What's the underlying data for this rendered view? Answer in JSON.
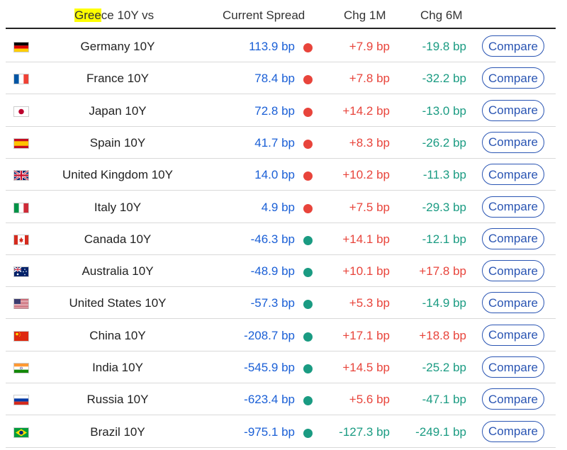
{
  "header": {
    "title_highlight": "Gree",
    "title_rest": "ce 10Y vs",
    "spread": "Current Spread",
    "chg1m": "Chg 1M",
    "chg6m": "Chg 6M"
  },
  "colors": {
    "up": "#e8443b",
    "down": "#1a9b82",
    "spread": "#1a5fd6",
    "button": "#2a55b3"
  },
  "rows": [
    {
      "flag": "germany-flag-icon",
      "name": "Germany 10Y",
      "spread": "113.9 bp",
      "status": "red",
      "m1": "+7.9 bp",
      "m6": "-19.8 bp",
      "button": "Compare"
    },
    {
      "flag": "france-flag-icon",
      "name": "France 10Y",
      "spread": "78.4 bp",
      "status": "red",
      "m1": "+7.8 bp",
      "m6": "-32.2 bp",
      "button": "Compare"
    },
    {
      "flag": "japan-flag-icon",
      "name": "Japan 10Y",
      "spread": "72.8 bp",
      "status": "red",
      "m1": "+14.2 bp",
      "m6": "-13.0 bp",
      "button": "Compare"
    },
    {
      "flag": "spain-flag-icon",
      "name": "Spain 10Y",
      "spread": "41.7 bp",
      "status": "red",
      "m1": "+8.3 bp",
      "m6": "-26.2 bp",
      "button": "Compare"
    },
    {
      "flag": "uk-flag-icon",
      "name": "United Kingdom 10Y",
      "spread": "14.0 bp",
      "status": "red",
      "m1": "+10.2 bp",
      "m6": "-11.3 bp",
      "button": "Compare"
    },
    {
      "flag": "italy-flag-icon",
      "name": "Italy 10Y",
      "spread": "4.9 bp",
      "status": "red",
      "m1": "+7.5 bp",
      "m6": "-29.3 bp",
      "button": "Compare"
    },
    {
      "flag": "canada-flag-icon",
      "name": "Canada 10Y",
      "spread": "-46.3 bp",
      "status": "green",
      "m1": "+14.1 bp",
      "m6": "-12.1 bp",
      "button": "Compare"
    },
    {
      "flag": "australia-flag-icon",
      "name": "Australia 10Y",
      "spread": "-48.9 bp",
      "status": "green",
      "m1": "+10.1 bp",
      "m6": "+17.8 bp",
      "button": "Compare"
    },
    {
      "flag": "usa-flag-icon",
      "name": "United States 10Y",
      "spread": "-57.3 bp",
      "status": "green",
      "m1": "+5.3 bp",
      "m6": "-14.9 bp",
      "button": "Compare"
    },
    {
      "flag": "china-flag-icon",
      "name": "China 10Y",
      "spread": "-208.7 bp",
      "status": "green",
      "m1": "+17.1 bp",
      "m6": "+18.8 bp",
      "button": "Compare"
    },
    {
      "flag": "india-flag-icon",
      "name": "India 10Y",
      "spread": "-545.9 bp",
      "status": "green",
      "m1": "+14.5 bp",
      "m6": "-25.2 bp",
      "button": "Compare"
    },
    {
      "flag": "russia-flag-icon",
      "name": "Russia 10Y",
      "spread": "-623.4 bp",
      "status": "green",
      "m1": "+5.6 bp",
      "m6": "-47.1 bp",
      "button": "Compare"
    },
    {
      "flag": "brazil-flag-icon",
      "name": "Brazil 10Y",
      "spread": "-975.1 bp",
      "status": "green",
      "m1": "-127.3 bp",
      "m6": "-249.1 bp",
      "button": "Compare"
    }
  ]
}
